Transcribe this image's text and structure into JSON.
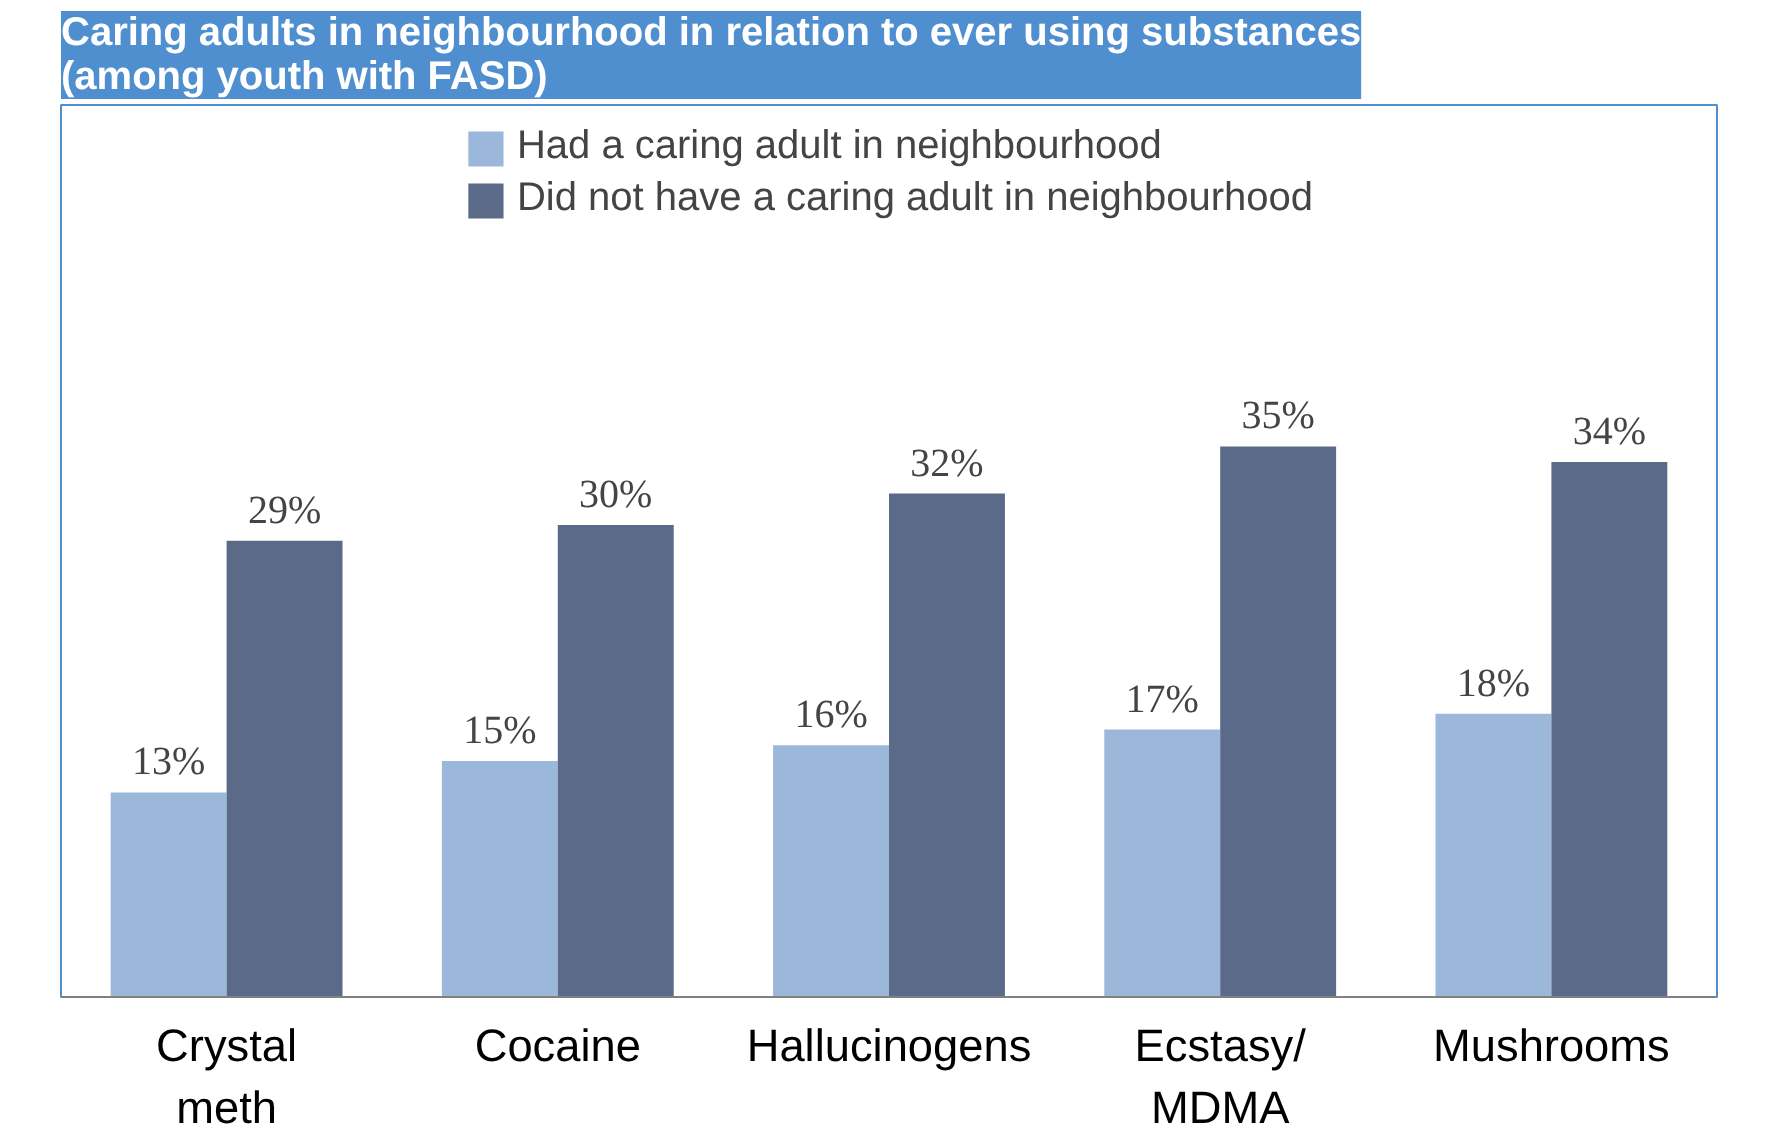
{
  "chart_data": {
    "type": "bar",
    "title": "Caring adults in neighbourhood in relation to ever using substances (among youth with FASD)",
    "categories": [
      "Crystal\nmeth",
      "Cocaine",
      "Hallucinogens",
      "Ecstasy/\nMDMA",
      "Mushrooms"
    ],
    "series": [
      {
        "name": "Had a caring adult in neighbourhood",
        "color": "#9bb7d9",
        "values": [
          13,
          15,
          16,
          17,
          18
        ],
        "value_labels": [
          "13%",
          "15%",
          "16%",
          "17%",
          "18%"
        ]
      },
      {
        "name": "Did not have a caring adult in neighbourhood",
        "color": "#5b6a88",
        "values": [
          29,
          30,
          32,
          35,
          34
        ],
        "value_labels": [
          "29%",
          "30%",
          "32%",
          "35%",
          "34%"
        ]
      }
    ],
    "legend": "top",
    "grid": false
  }
}
